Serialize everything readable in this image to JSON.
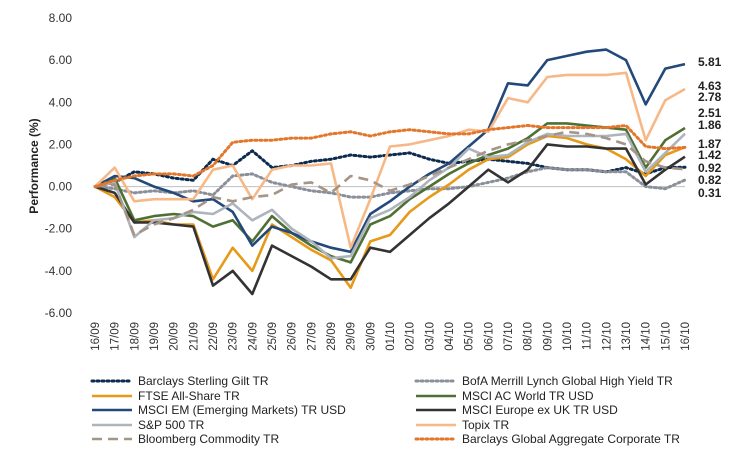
{
  "chart_data": {
    "type": "line",
    "ylabel": "Performance (%)",
    "ylim": [
      -6,
      8
    ],
    "yticks": [
      "-6.00",
      "-4.00",
      "-2.00",
      "0.00",
      "2.00",
      "4.00",
      "6.00",
      "8.00"
    ],
    "grid": false,
    "legend_position": "bottom",
    "categories": [
      "16/09",
      "17/09",
      "18/09",
      "19/09",
      "20/09",
      "21/09",
      "22/09",
      "23/09",
      "24/09",
      "25/09",
      "26/09",
      "27/09",
      "28/09",
      "29/09",
      "30/09",
      "01/10",
      "02/10",
      "03/10",
      "04/10",
      "05/10",
      "06/10",
      "07/10",
      "08/10",
      "09/10",
      "10/10",
      "11/10",
      "12/10",
      "13/10",
      "14/10",
      "15/10",
      "16/10"
    ],
    "end_labels": [
      "5.81",
      "4.63",
      "2.78",
      "2.51",
      "1.86",
      "1.87",
      "1.42",
      "0.92",
      "0.82",
      "0.31"
    ],
    "series": [
      {
        "name": "Barclays Sterling Gilt TR",
        "color": "#0d2b4e",
        "dash": "dot",
        "values": [
          0,
          0.2,
          0.7,
          0.6,
          0.4,
          0.3,
          1.3,
          1.0,
          1.7,
          0.9,
          1.0,
          1.2,
          1.3,
          1.5,
          1.4,
          1.5,
          1.6,
          1.3,
          1.1,
          1.2,
          1.3,
          1.2,
          1.1,
          0.9,
          0.8,
          0.8,
          0.7,
          0.9,
          0.6,
          0.9,
          0.92
        ]
      },
      {
        "name": "BofA Merrill Lynch Global High Yield TR",
        "color": "#8a8f99",
        "dash": "dot",
        "values": [
          0,
          -0.1,
          -0.3,
          -0.2,
          -0.3,
          -0.2,
          -0.4,
          0.5,
          0.6,
          0.2,
          0.0,
          -0.2,
          -0.3,
          -0.5,
          -0.5,
          -0.3,
          -0.2,
          -0.1,
          -0.1,
          0.0,
          0.2,
          0.4,
          0.7,
          0.9,
          0.8,
          0.8,
          0.7,
          0.7,
          0.0,
          -0.1,
          0.31
        ]
      },
      {
        "name": "FTSE All-Share TR",
        "color": "#e69a1a",
        "dash": "solid",
        "values": [
          0,
          -0.5,
          -1.7,
          -1.6,
          -1.8,
          -1.8,
          -4.4,
          -2.9,
          -4.0,
          -1.8,
          -2.4,
          -3.0,
          -3.5,
          -4.8,
          -2.6,
          -2.3,
          -1.2,
          -0.5,
          0.1,
          0.8,
          1.3,
          1.4,
          2.0,
          2.4,
          2.3,
          2.0,
          1.8,
          1.3,
          0.5,
          1.5,
          1.87
        ]
      },
      {
        "name": "MSCI AC World TR USD",
        "color": "#4e7034",
        "dash": "solid",
        "values": [
          0,
          0.4,
          -1.6,
          -1.4,
          -1.3,
          -1.4,
          -1.9,
          -1.6,
          -2.6,
          -1.4,
          -2.2,
          -2.8,
          -3.3,
          -3.6,
          -1.8,
          -1.4,
          -0.6,
          0.0,
          0.6,
          1.1,
          1.5,
          1.8,
          2.3,
          3.0,
          3.0,
          2.9,
          2.8,
          2.7,
          0.9,
          2.2,
          2.78
        ]
      },
      {
        "name": "MSCI EM (Emerging Markets) TR USD",
        "color": "#23497a",
        "dash": "solid",
        "values": [
          0,
          0.5,
          0.4,
          0.0,
          -0.3,
          -0.7,
          -0.6,
          -1.2,
          -2.8,
          -1.9,
          -2.2,
          -2.6,
          -2.9,
          -3.1,
          -1.3,
          -0.7,
          0.0,
          0.6,
          1.1,
          1.9,
          2.7,
          4.9,
          4.8,
          6.0,
          6.2,
          6.4,
          6.5,
          6.0,
          3.9,
          5.6,
          5.81
        ]
      },
      {
        "name": "MSCI Europe ex UK TR USD",
        "color": "#333333",
        "dash": "solid",
        "values": [
          0,
          -0.3,
          -1.7,
          -1.7,
          -1.8,
          -1.9,
          -4.7,
          -4.0,
          -5.1,
          -2.8,
          -3.3,
          -3.8,
          -4.4,
          -4.4,
          -2.9,
          -3.1,
          -2.3,
          -1.5,
          -0.8,
          0.0,
          0.8,
          0.2,
          0.8,
          2.0,
          1.9,
          1.9,
          1.8,
          1.8,
          0.1,
          0.8,
          1.42
        ]
      },
      {
        "name": "S&P 500 TR",
        "color": "#aeb4bd",
        "dash": "solid",
        "values": [
          0,
          0.2,
          -2.4,
          -1.6,
          -1.5,
          -1.2,
          -1.3,
          -0.8,
          -1.6,
          -1.1,
          -2.0,
          -2.6,
          -3.4,
          -3.3,
          -1.5,
          -1.1,
          -0.5,
          0.3,
          0.9,
          1.8,
          1.4,
          1.5,
          2.1,
          2.5,
          2.4,
          2.4,
          2.4,
          2.5,
          0.7,
          1.6,
          2.51
        ]
      },
      {
        "name": "Topix TR",
        "color": "#f7b887",
        "dash": "solid",
        "values": [
          0,
          0.9,
          -0.7,
          -0.6,
          -0.6,
          -0.6,
          0.8,
          1.0,
          -0.6,
          0.8,
          1.0,
          1.0,
          1.1,
          -2.9,
          -0.6,
          1.9,
          2.0,
          2.2,
          2.4,
          2.7,
          2.6,
          4.2,
          4.0,
          5.2,
          5.3,
          5.3,
          5.3,
          5.4,
          2.2,
          4.1,
          4.63
        ]
      },
      {
        "name": "Bloomberg Commodity TR",
        "color": "#a49587",
        "dash": "dash",
        "values": [
          0,
          0.1,
          -2.3,
          -1.8,
          -1.5,
          -1.1,
          -0.5,
          -0.7,
          -0.5,
          -0.4,
          0.1,
          0.2,
          -0.3,
          0.5,
          0.3,
          -0.2,
          0.1,
          0.5,
          0.9,
          1.3,
          1.7,
          2.0,
          2.2,
          2.4,
          2.6,
          2.5,
          2.3,
          2.0,
          1.2,
          0.9,
          0.82
        ]
      },
      {
        "name": "Barclays Global Aggregate Corporate TR",
        "color": "#e2762a",
        "dash": "dot",
        "values": [
          0,
          0.3,
          0.5,
          0.6,
          0.6,
          0.5,
          1.0,
          2.1,
          2.2,
          2.2,
          2.3,
          2.3,
          2.5,
          2.6,
          2.4,
          2.6,
          2.7,
          2.6,
          2.5,
          2.5,
          2.7,
          2.8,
          2.9,
          2.8,
          2.8,
          2.8,
          2.8,
          2.9,
          1.9,
          1.8,
          1.86
        ]
      }
    ]
  }
}
